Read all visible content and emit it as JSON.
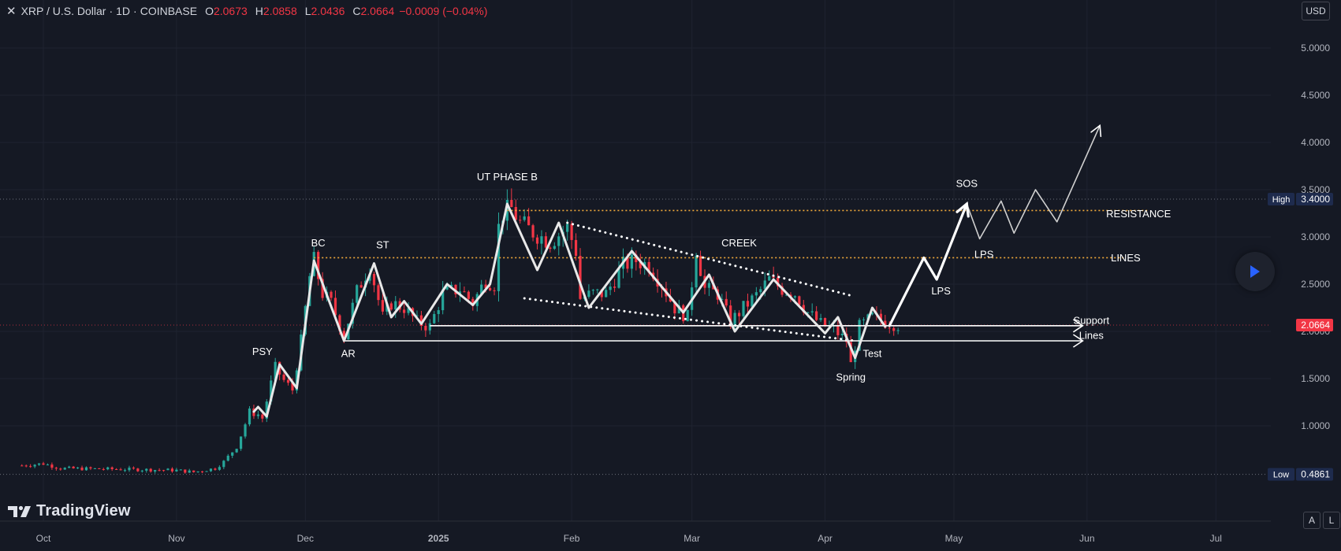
{
  "header": {
    "symbol": "XRP / U.S. Dollar",
    "interval": "1D",
    "exchange": "COINBASE",
    "open_label": "O",
    "open": "2.0673",
    "high_label": "H",
    "high": "2.0858",
    "low_label": "L",
    "low": "2.0436",
    "close_label": "C",
    "close": "2.0664",
    "change": "−0.0009 (−0.04%)",
    "currency": "USD"
  },
  "branding": {
    "logo_text": "TradingView"
  },
  "controls": {
    "auto_scale": "A",
    "log_scale": "L"
  },
  "colors": {
    "background": "#151924",
    "up_candle": "#26a69a",
    "down_candle": "#f23645",
    "annotation": "#ffffff",
    "resistance_line": "#f0a93b",
    "price_tag": "#f23645",
    "high_low_tag": "#1e2b4d"
  },
  "chart_data": {
    "type": "candlestick",
    "title": "XRP / U.S. Dollar · 1D · COINBASE",
    "y_axis": {
      "ticks": [
        "5.0000",
        "4.5000",
        "4.0000",
        "3.5000",
        "3.0000",
        "2.5000",
        "2.0000",
        "1.5000",
        "1.0000"
      ],
      "range": [
        0.3,
        5.5
      ]
    },
    "x_axis": {
      "ticks": [
        {
          "label": "Oct",
          "date": "2024-10-01"
        },
        {
          "label": "Nov",
          "date": "2024-11-01"
        },
        {
          "label": "Dec",
          "date": "2024-12-01"
        },
        {
          "label": "2025",
          "date": "2025-01-01"
        },
        {
          "label": "Feb",
          "date": "2025-02-01"
        },
        {
          "label": "Mar",
          "date": "2025-03-01"
        },
        {
          "label": "Apr",
          "date": "2025-04-01"
        },
        {
          "label": "May",
          "date": "2025-05-01"
        },
        {
          "label": "Jun",
          "date": "2025-06-01"
        },
        {
          "label": "Jul",
          "date": "2025-07-01"
        }
      ],
      "range": [
        "2024-09-25",
        "2025-07-22"
      ]
    },
    "high": {
      "label": "High",
      "value": "3.4000"
    },
    "low": {
      "label": "Low",
      "value": "0.4861"
    },
    "last_price": "2.0664",
    "price_path": [
      [
        "2024-09-26",
        0.58
      ],
      [
        "2024-10-01",
        0.6
      ],
      [
        "2024-10-05",
        0.55
      ],
      [
        "2024-10-20",
        0.54
      ],
      [
        "2024-11-01",
        0.53
      ],
      [
        "2024-11-05",
        0.51
      ],
      [
        "2024-11-10",
        0.55
      ],
      [
        "2024-11-12",
        0.62
      ],
      [
        "2024-11-15",
        0.78
      ],
      [
        "2024-11-17",
        1.02
      ],
      [
        "2024-11-18",
        1.15
      ],
      [
        "2024-11-20",
        1.12
      ],
      [
        "2024-11-21",
        1.08
      ],
      [
        "2024-11-23",
        1.45
      ],
      [
        "2024-11-24",
        1.62
      ],
      [
        "2024-11-26",
        1.48
      ],
      [
        "2024-11-28",
        1.38
      ],
      [
        "2024-11-30",
        1.9
      ],
      [
        "2024-12-02",
        2.58
      ],
      [
        "2024-12-03",
        2.75
      ],
      [
        "2024-12-05",
        2.4
      ],
      [
        "2024-12-07",
        2.3
      ],
      [
        "2024-12-10",
        1.95
      ],
      [
        "2024-12-13",
        2.42
      ],
      [
        "2024-12-16",
        2.7
      ],
      [
        "2024-12-19",
        2.15
      ],
      [
        "2024-12-21",
        2.3
      ],
      [
        "2024-12-24",
        2.25
      ],
      [
        "2024-12-27",
        2.1
      ],
      [
        "2024-12-30",
        2.05
      ],
      [
        "2025-01-02",
        2.4
      ],
      [
        "2025-01-06",
        2.45
      ],
      [
        "2025-01-09",
        2.3
      ],
      [
        "2025-01-12",
        2.55
      ],
      [
        "2025-01-14",
        2.5
      ],
      [
        "2025-01-15",
        3.1
      ],
      [
        "2025-01-16",
        3.25
      ],
      [
        "2025-01-18",
        3.3
      ],
      [
        "2025-01-20",
        3.15
      ],
      [
        "2025-01-23",
        3.05
      ],
      [
        "2025-01-27",
        2.95
      ],
      [
        "2025-01-31",
        3.1
      ],
      [
        "2025-02-02",
        2.85
      ],
      [
        "2025-02-03",
        2.35
      ],
      [
        "2025-02-06",
        2.4
      ],
      [
        "2025-02-09",
        2.4
      ],
      [
        "2025-02-13",
        2.7
      ],
      [
        "2025-02-16",
        2.75
      ],
      [
        "2025-02-19",
        2.7
      ],
      [
        "2025-02-22",
        2.5
      ],
      [
        "2025-02-25",
        2.25
      ],
      [
        "2025-02-28",
        2.15
      ],
      [
        "2025-03-02",
        2.88
      ],
      [
        "2025-03-04",
        2.45
      ],
      [
        "2025-03-07",
        2.4
      ],
      [
        "2025-03-10",
        2.1
      ],
      [
        "2025-03-13",
        2.25
      ],
      [
        "2025-03-16",
        2.38
      ],
      [
        "2025-03-19",
        2.55
      ],
      [
        "2025-03-22",
        2.45
      ],
      [
        "2025-03-25",
        2.4
      ],
      [
        "2025-03-28",
        2.2
      ],
      [
        "2025-03-31",
        2.08
      ],
      [
        "2025-04-03",
        2.02
      ],
      [
        "2025-04-06",
        1.9
      ],
      [
        "2025-04-07",
        1.65
      ],
      [
        "2025-04-09",
        2.05
      ],
      [
        "2025-04-12",
        2.15
      ],
      [
        "2025-04-15",
        2.1
      ],
      [
        "2025-04-18",
        2.07
      ]
    ],
    "drawings": {
      "wyckoff_path": [
        [
          "2024-11-19",
          1.15
        ],
        [
          "2024-11-20",
          1.2
        ],
        [
          "2024-11-22",
          1.1
        ],
        [
          "2024-11-25",
          1.65
        ],
        [
          "2024-11-29",
          1.4
        ],
        [
          "2024-12-03",
          2.75
        ],
        [
          "2024-12-10",
          1.9
        ],
        [
          "2024-12-17",
          2.72
        ],
        [
          "2024-12-21",
          2.15
        ],
        [
          "2024-12-24",
          2.32
        ],
        [
          "2024-12-28",
          2.08
        ],
        [
          "2025-01-03",
          2.5
        ],
        [
          "2025-01-09",
          2.28
        ],
        [
          "2025-01-13",
          2.5
        ],
        [
          "2025-01-17",
          3.35
        ],
        [
          "2025-01-24",
          2.65
        ],
        [
          "2025-01-29",
          3.15
        ],
        [
          "2025-02-05",
          2.25
        ],
        [
          "2025-02-15",
          2.85
        ],
        [
          "2025-02-27",
          2.2
        ],
        [
          "2025-03-05",
          2.6
        ],
        [
          "2025-03-11",
          2.0
        ],
        [
          "2025-03-20",
          2.55
        ],
        [
          "2025-04-01",
          1.98
        ],
        [
          "2025-04-04",
          2.15
        ],
        [
          "2025-04-08",
          1.72
        ],
        [
          "2025-04-12",
          2.25
        ],
        [
          "2025-04-15",
          2.05
        ]
      ],
      "projection_main": [
        [
          "2025-04-16",
          2.06
        ],
        [
          "2025-04-24",
          2.78
        ],
        [
          "2025-04-27",
          2.55
        ],
        [
          "2025-05-04",
          3.35
        ]
      ],
      "projection_thin": [
        [
          "2025-05-04",
          3.35
        ],
        [
          "2025-05-07",
          2.98
        ],
        [
          "2025-05-12",
          3.38
        ],
        [
          "2025-05-15",
          3.04
        ],
        [
          "2025-05-20",
          3.5
        ],
        [
          "2025-05-25",
          3.16
        ],
        [
          "2025-06-04",
          4.18
        ]
      ],
      "resistance_upper": {
        "value": 3.28,
        "start": "2025-01-17",
        "end": "2025-06-15"
      },
      "resistance_lower": {
        "value": 2.78,
        "start": "2024-12-03",
        "end": "2025-06-10"
      },
      "support_upper": {
        "value": 2.06,
        "start": "2024-12-30",
        "end": "2025-05-31",
        "arrow": true
      },
      "support_lower": {
        "value": 1.9,
        "start": "2024-12-10",
        "end": "2025-05-31",
        "arrow": true
      },
      "dotted_upper": {
        "from": [
          "2025-01-31",
          3.15
        ],
        "to": [
          "2025-04-07",
          2.38
        ]
      },
      "dotted_lower": {
        "from": [
          "2025-01-21",
          2.35
        ],
        "to": [
          "2025-04-08",
          1.9
        ]
      }
    },
    "annotations": [
      {
        "text": "PSY",
        "date": "2024-11-21",
        "value": 1.75
      },
      {
        "text": "BC",
        "date": "2024-12-04",
        "value": 2.9
      },
      {
        "text": "ST",
        "date": "2024-12-19",
        "value": 2.88
      },
      {
        "text": "AR",
        "date": "2024-12-11",
        "value": 1.73
      },
      {
        "text": "UT PHASE B",
        "date": "2025-01-17",
        "value": 3.6
      },
      {
        "text": "CREEK",
        "date": "2025-03-12",
        "value": 2.9
      },
      {
        "text": "SOS",
        "date": "2025-05-04",
        "value": 3.53
      },
      {
        "text": "LPS",
        "date": "2025-04-28",
        "value": 2.39
      },
      {
        "text": "LPS",
        "date": "2025-05-08",
        "value": 2.78
      },
      {
        "text": "RESISTANCE",
        "date": "2025-06-13",
        "value": 3.21
      },
      {
        "text": "LINES",
        "date": "2025-06-10",
        "value": 2.74
      },
      {
        "text": "Support",
        "date": "2025-06-02",
        "value": 2.08
      },
      {
        "text": "Lines",
        "date": "2025-06-02",
        "value": 1.92
      },
      {
        "text": "Test",
        "date": "2025-04-12",
        "value": 1.73
      },
      {
        "text": "Spring",
        "date": "2025-04-07",
        "value": 1.48
      }
    ]
  }
}
